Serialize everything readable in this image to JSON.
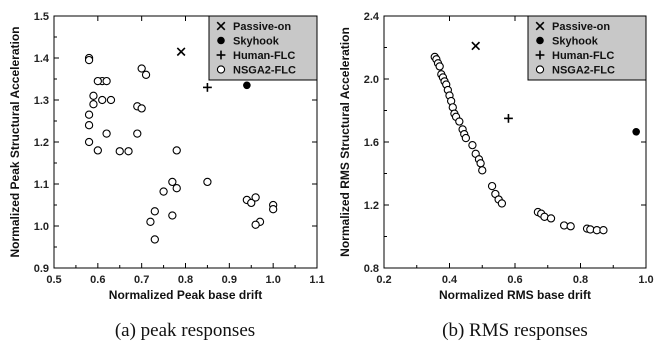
{
  "chart_data": [
    {
      "type": "scatter",
      "xlabel": "Normalized Peak base drift",
      "ylabel": "Normalized Peak Structural Acceleration",
      "xlim": [
        0.5,
        1.1
      ],
      "ylim": [
        0.9,
        1.5
      ],
      "xticks": [
        "0.5",
        "0.6",
        "0.7",
        "0.8",
        "0.9",
        "1.0",
        "1.1"
      ],
      "yticks": [
        "0.9",
        "1.0",
        "1.1",
        "1.2",
        "1.3",
        "1.4",
        "1.5"
      ],
      "grid": false,
      "legend": "top-right",
      "caption": "(a) peak responses",
      "series": [
        {
          "name": "Passive-on",
          "marker": "x",
          "points": [
            [
              0.79,
              1.415
            ]
          ]
        },
        {
          "name": "Skyhook",
          "marker": "filled-circle",
          "points": [
            [
              0.94,
              1.335
            ]
          ]
        },
        {
          "name": "Human-FLC",
          "marker": "plus",
          "points": [
            [
              0.85,
              1.33
            ]
          ]
        },
        {
          "name": "NSGA2-FLC",
          "marker": "open-circle",
          "points": [
            [
              0.58,
              1.4
            ],
            [
              0.58,
              1.395
            ],
            [
              0.61,
              1.345
            ],
            [
              0.62,
              1.345
            ],
            [
              0.6,
              1.345
            ],
            [
              0.7,
              1.375
            ],
            [
              0.71,
              1.36
            ],
            [
              0.59,
              1.31
            ],
            [
              0.61,
              1.3
            ],
            [
              0.63,
              1.3
            ],
            [
              0.59,
              1.29
            ],
            [
              0.69,
              1.285
            ],
            [
              0.7,
              1.28
            ],
            [
              0.58,
              1.265
            ],
            [
              0.58,
              1.24
            ],
            [
              0.62,
              1.22
            ],
            [
              0.69,
              1.22
            ],
            [
              0.58,
              1.2
            ],
            [
              0.6,
              1.18
            ],
            [
              0.65,
              1.178
            ],
            [
              0.67,
              1.178
            ],
            [
              0.78,
              1.18
            ],
            [
              0.85,
              1.105
            ],
            [
              0.77,
              1.105
            ],
            [
              0.75,
              1.082
            ],
            [
              0.78,
              1.09
            ],
            [
              0.73,
              1.035
            ],
            [
              0.72,
              1.01
            ],
            [
              0.73,
              0.968
            ],
            [
              0.77,
              1.025
            ],
            [
              0.94,
              1.062
            ],
            [
              0.95,
              1.055
            ],
            [
              0.96,
              1.068
            ],
            [
              1.0,
              1.05
            ],
            [
              1.0,
              1.04
            ],
            [
              0.97,
              1.01
            ],
            [
              0.96,
              1.003
            ]
          ]
        }
      ]
    },
    {
      "type": "scatter",
      "xlabel": "Normalized RMS base drift",
      "ylabel": "Normalized RMS Structural Acceleration",
      "xlim": [
        0.2,
        1.0
      ],
      "ylim": [
        0.8,
        2.4
      ],
      "xticks": [
        "0.2",
        "0.4",
        "0.6",
        "0.8",
        "1.0"
      ],
      "yticks": [
        "0.8",
        "1.2",
        "1.6",
        "2.0",
        "2.4"
      ],
      "grid": false,
      "legend": "top-right",
      "caption": "(b) RMS responses",
      "series": [
        {
          "name": "Passive-on",
          "marker": "x",
          "points": [
            [
              0.48,
              2.21
            ]
          ]
        },
        {
          "name": "Skyhook",
          "marker": "filled-circle",
          "points": [
            [
              0.97,
              1.665
            ]
          ]
        },
        {
          "name": "Human-FLC",
          "marker": "plus",
          "points": [
            [
              0.58,
              1.75
            ]
          ]
        },
        {
          "name": "NSGA2-FLC",
          "marker": "open-circle",
          "points": [
            [
              0.355,
              2.14
            ],
            [
              0.36,
              2.125
            ],
            [
              0.365,
              2.1
            ],
            [
              0.37,
              2.08
            ],
            [
              0.375,
              2.03
            ],
            [
              0.38,
              2.01
            ],
            [
              0.385,
              1.985
            ],
            [
              0.39,
              1.965
            ],
            [
              0.395,
              1.93
            ],
            [
              0.4,
              1.895
            ],
            [
              0.405,
              1.86
            ],
            [
              0.41,
              1.82
            ],
            [
              0.415,
              1.78
            ],
            [
              0.42,
              1.76
            ],
            [
              0.43,
              1.73
            ],
            [
              0.44,
              1.68
            ],
            [
              0.445,
              1.65
            ],
            [
              0.45,
              1.625
            ],
            [
              0.47,
              1.58
            ],
            [
              0.48,
              1.525
            ],
            [
              0.49,
              1.49
            ],
            [
              0.495,
              1.465
            ],
            [
              0.5,
              1.42
            ],
            [
              0.53,
              1.32
            ],
            [
              0.54,
              1.27
            ],
            [
              0.55,
              1.235
            ],
            [
              0.56,
              1.21
            ],
            [
              0.67,
              1.155
            ],
            [
              0.68,
              1.145
            ],
            [
              0.69,
              1.125
            ],
            [
              0.71,
              1.115
            ],
            [
              0.75,
              1.07
            ],
            [
              0.77,
              1.065
            ],
            [
              0.82,
              1.05
            ],
            [
              0.83,
              1.045
            ],
            [
              0.85,
              1.04
            ],
            [
              0.87,
              1.04
            ]
          ]
        }
      ]
    }
  ]
}
